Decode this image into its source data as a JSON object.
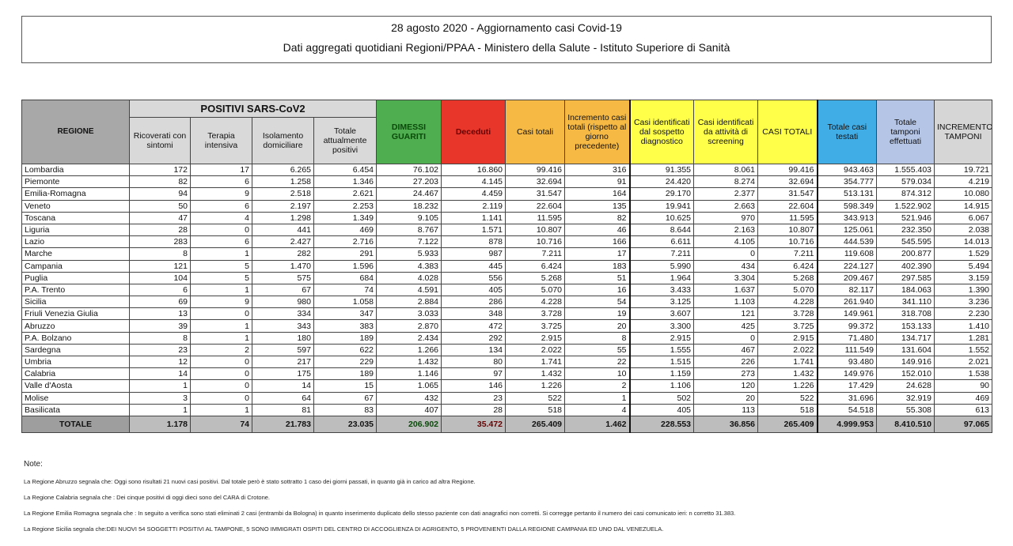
{
  "title": "28 agosto 2020 - Aggiornamento casi Covid-19",
  "subtitle": "Dati aggregati quotidiani Regioni/PPAA - Ministero della Salute - Istituto Superiore di Sanità",
  "table": {
    "group_header": "POSITIVI SARS-CoV2",
    "columns": [
      "REGIONE",
      "Ricoverati con sintomi",
      "Terapia intensiva",
      "Isolamento domiciliare",
      "Totale attualmente positivi",
      "DIMESSI GUARITI",
      "Deceduti",
      "Casi totali",
      "Incremento casi totali (rispetto al giorno precedente)",
      "Casi identificati dal sospetto diagnostico",
      "Casi identificati da attività di screening",
      "CASI TOTALI",
      "Totale casi testati",
      "Totale tamponi effettuati",
      "INCREMENTO TAMPONI"
    ],
    "column_colors": [
      "#a8a8a8",
      "#d9d9d9",
      "#d9d9d9",
      "#d9d9d9",
      "#d9d9d9",
      "#4fae4f",
      "#e8362a",
      "#f5b944",
      "#f5b944",
      "#ffff4a",
      "#ffff4a",
      "#ffff4a",
      "#41ade6",
      "#b5c5e6",
      "#d6d6d6"
    ],
    "rows": [
      [
        "Lombardia",
        "172",
        "17",
        "6.265",
        "6.454",
        "76.102",
        "16.860",
        "99.416",
        "316",
        "91.355",
        "8.061",
        "99.416",
        "943.463",
        "1.555.403",
        "19.721"
      ],
      [
        "Piemonte",
        "82",
        "6",
        "1.258",
        "1.346",
        "27.203",
        "4.145",
        "32.694",
        "91",
        "24.420",
        "8.274",
        "32.694",
        "354.777",
        "579.034",
        "4.219"
      ],
      [
        "Emilia-Romagna",
        "94",
        "9",
        "2.518",
        "2.621",
        "24.467",
        "4.459",
        "31.547",
        "164",
        "29.170",
        "2.377",
        "31.547",
        "513.131",
        "874.312",
        "10.080"
      ],
      [
        "Veneto",
        "50",
        "6",
        "2.197",
        "2.253",
        "18.232",
        "2.119",
        "22.604",
        "135",
        "19.941",
        "2.663",
        "22.604",
        "598.349",
        "1.522.902",
        "14.915"
      ],
      [
        "Toscana",
        "47",
        "4",
        "1.298",
        "1.349",
        "9.105",
        "1.141",
        "11.595",
        "82",
        "10.625",
        "970",
        "11.595",
        "343.913",
        "521.946",
        "6.067"
      ],
      [
        "Liguria",
        "28",
        "0",
        "441",
        "469",
        "8.767",
        "1.571",
        "10.807",
        "46",
        "8.644",
        "2.163",
        "10.807",
        "125.061",
        "232.350",
        "2.038"
      ],
      [
        "Lazio",
        "283",
        "6",
        "2.427",
        "2.716",
        "7.122",
        "878",
        "10.716",
        "166",
        "6.611",
        "4.105",
        "10.716",
        "444.539",
        "545.595",
        "14.013"
      ],
      [
        "Marche",
        "8",
        "1",
        "282",
        "291",
        "5.933",
        "987",
        "7.211",
        "17",
        "7.211",
        "0",
        "7.211",
        "119.608",
        "200.877",
        "1.529"
      ],
      [
        "Campania",
        "121",
        "5",
        "1.470",
        "1.596",
        "4.383",
        "445",
        "6.424",
        "183",
        "5.990",
        "434",
        "6.424",
        "224.127",
        "402.390",
        "5.494"
      ],
      [
        "Puglia",
        "104",
        "5",
        "575",
        "684",
        "4.028",
        "556",
        "5.268",
        "51",
        "1.964",
        "3.304",
        "5.268",
        "209.467",
        "297.585",
        "3.159"
      ],
      [
        "P.A. Trento",
        "6",
        "1",
        "67",
        "74",
        "4.591",
        "405",
        "5.070",
        "16",
        "3.433",
        "1.637",
        "5.070",
        "82.117",
        "184.063",
        "1.390"
      ],
      [
        "Sicilia",
        "69",
        "9",
        "980",
        "1.058",
        "2.884",
        "286",
        "4.228",
        "54",
        "3.125",
        "1.103",
        "4.228",
        "261.940",
        "341.110",
        "3.236"
      ],
      [
        "Friuli Venezia Giulia",
        "13",
        "0",
        "334",
        "347",
        "3.033",
        "348",
        "3.728",
        "19",
        "3.607",
        "121",
        "3.728",
        "149.961",
        "318.708",
        "2.230"
      ],
      [
        "Abruzzo",
        "39",
        "1",
        "343",
        "383",
        "2.870",
        "472",
        "3.725",
        "20",
        "3.300",
        "425",
        "3.725",
        "99.372",
        "153.133",
        "1.410"
      ],
      [
        "P.A. Bolzano",
        "8",
        "1",
        "180",
        "189",
        "2.434",
        "292",
        "2.915",
        "8",
        "2.915",
        "0",
        "2.915",
        "71.480",
        "134.717",
        "1.281"
      ],
      [
        "Sardegna",
        "23",
        "2",
        "597",
        "622",
        "1.266",
        "134",
        "2.022",
        "55",
        "1.555",
        "467",
        "2.022",
        "111.549",
        "131.604",
        "1.552"
      ],
      [
        "Umbria",
        "12",
        "0",
        "217",
        "229",
        "1.432",
        "80",
        "1.741",
        "22",
        "1.515",
        "226",
        "1.741",
        "93.480",
        "149.916",
        "2.021"
      ],
      [
        "Calabria",
        "14",
        "0",
        "175",
        "189",
        "1.146",
        "97",
        "1.432",
        "10",
        "1.159",
        "273",
        "1.432",
        "149.976",
        "152.010",
        "1.538"
      ],
      [
        "Valle d'Aosta",
        "1",
        "0",
        "14",
        "15",
        "1.065",
        "146",
        "1.226",
        "2",
        "1.106",
        "120",
        "1.226",
        "17.429",
        "24.628",
        "90"
      ],
      [
        "Molise",
        "3",
        "0",
        "64",
        "67",
        "432",
        "23",
        "522",
        "1",
        "502",
        "20",
        "522",
        "31.696",
        "32.919",
        "469"
      ],
      [
        "Basilicata",
        "1",
        "1",
        "81",
        "83",
        "407",
        "28",
        "518",
        "4",
        "405",
        "113",
        "518",
        "54.518",
        "55.308",
        "613"
      ]
    ],
    "total": [
      "TOTALE",
      "1.178",
      "74",
      "21.783",
      "23.035",
      "206.902",
      "35.472",
      "265.409",
      "1.462",
      "228.553",
      "36.856",
      "265.409",
      "4.999.953",
      "8.410.510",
      "97.065"
    ]
  },
  "notes": {
    "heading": "Note:",
    "items": [
      "La Regione Abruzzo segnala che:  Oggi sono risultati 21 nuovi casi positivi. Dal totale però è stato sottratto 1 caso dei giorni passati, in quanto già in carico ad altra Regione.",
      "La Regione Calabria segnala che : Dei cinque positivi di oggi dieci sono del CARA di Crotone.",
      "La Regione Emilia Romagna segnala che : In seguito a verifica sono stati eliminati 2 casi (entrambi da Bologna) in quanto inserimento duplicato dello stesso paziente con dati anagrafici non corretti. Si corregge pertanto il numero dei casi comunicato ieri: n corretto 31.383.",
      "La Regione Sicilia segnala che:DEI NUOVI 54 SOGGETTI POSITIVI AL TAMPONE, 5 SONO IMMIGRATI OSPITI DEL CENTRO DI ACCOGLIENZA DI AGRIGENTO, 5 PROVENIENTI DALLA REGIONE CAMPANIA ED UNO DAL VENEZUELA."
    ]
  }
}
